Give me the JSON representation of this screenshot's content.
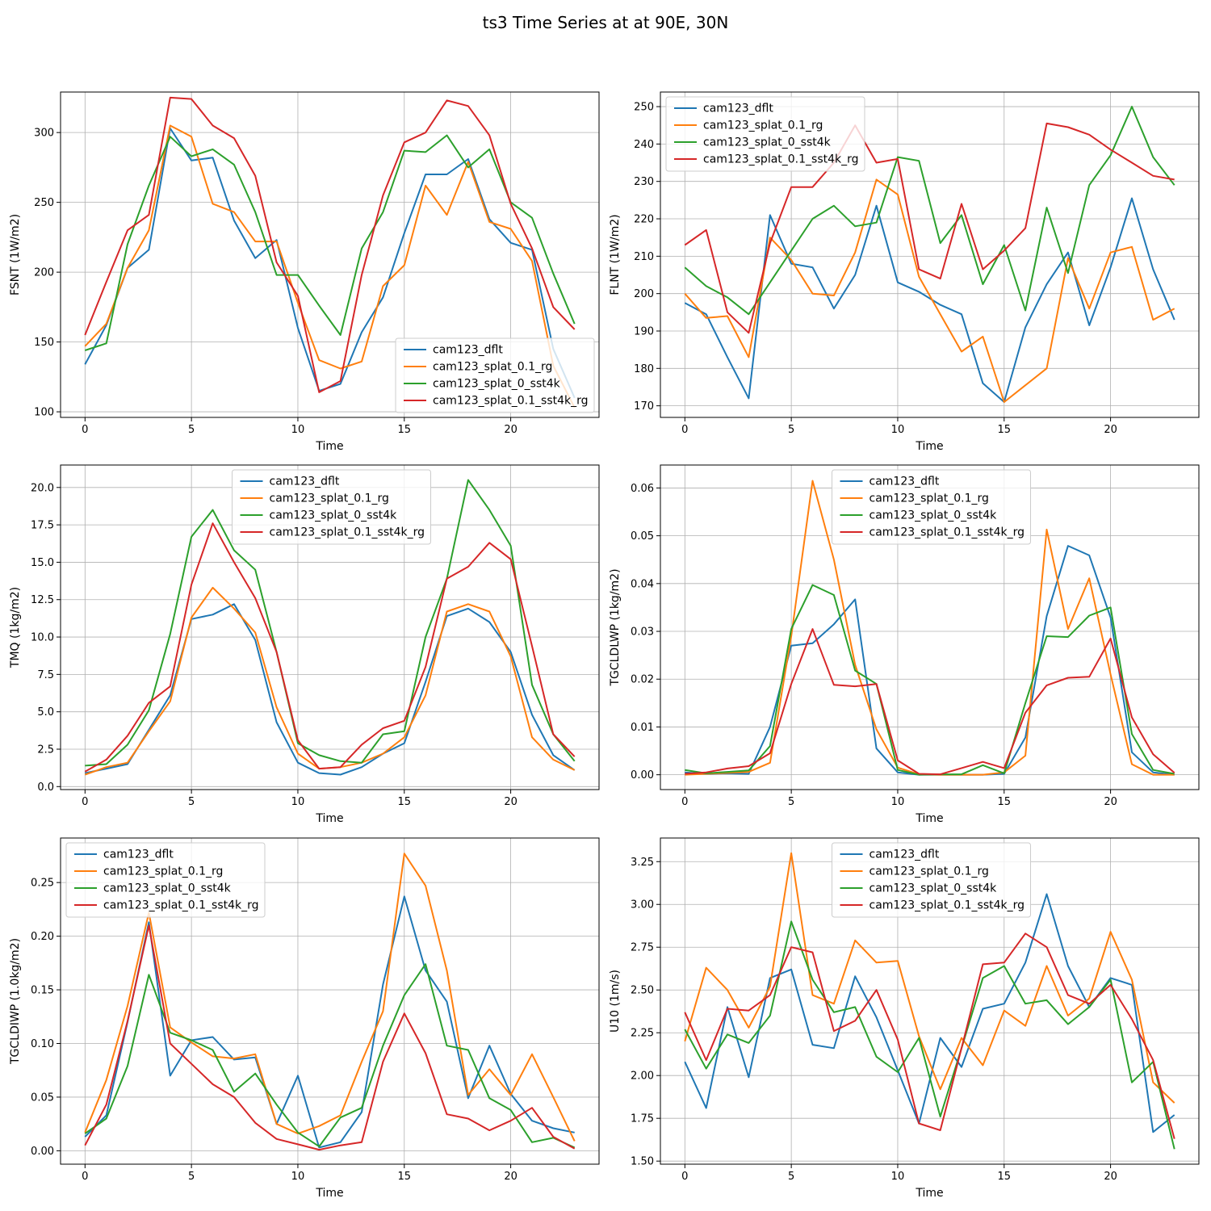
{
  "suptitle": "ts3 Time Series at at 90E, 30N",
  "colors": {
    "cam123_dflt": "#1f77b4",
    "cam123_splat_0.1_rg": "#ff7f0e",
    "cam123_splat_0_sst4k": "#2ca02c",
    "cam123_splat_0.1_sst4k_rg": "#d62728",
    "grid": "#b0b0b0",
    "axis": "#000000"
  },
  "chart_data": [
    {
      "id": "fsnt",
      "type": "line",
      "xlabel": "Time",
      "ylabel": "FSNT (1W/m2)",
      "xlim": [
        -1.15,
        24.15
      ],
      "ylim": [
        96,
        329
      ],
      "xticks": [
        0,
        5,
        10,
        15,
        20
      ],
      "yticks": [
        100,
        150,
        200,
        250,
        300
      ],
      "ytick_labels": [
        "100",
        "150",
        "200",
        "250",
        "300"
      ],
      "legend_loc": "lower-right",
      "x": [
        0,
        1,
        2,
        3,
        4,
        5,
        6,
        7,
        8,
        9,
        10,
        11,
        12,
        13,
        14,
        15,
        16,
        17,
        18,
        19,
        20,
        21,
        22,
        23
      ],
      "series": [
        {
          "name": "cam123_dflt",
          "values": [
            134,
            162,
            203,
            216,
            303,
            280,
            282,
            237,
            210,
            223,
            160,
            115,
            120,
            157,
            182,
            228,
            270,
            270,
            281,
            238,
            221,
            216,
            145,
            110
          ]
        },
        {
          "name": "cam123_splat_0.1_rg",
          "values": [
            147,
            163,
            203,
            230,
            305,
            297,
            249,
            243,
            222,
            222,
            178,
            137,
            131,
            136,
            190,
            205,
            262,
            241,
            279,
            236,
            231,
            208,
            133,
            103
          ]
        },
        {
          "name": "cam123_splat_0_sst4k",
          "values": [
            144,
            149,
            220,
            262,
            297,
            283,
            288,
            277,
            243,
            198,
            198,
            176,
            155,
            217,
            243,
            287,
            286,
            298,
            275,
            288,
            250,
            239,
            199,
            163
          ]
        },
        {
          "name": "cam123_splat_0.1_sst4k_rg",
          "values": [
            155,
            193,
            230,
            241,
            325,
            324,
            305,
            296,
            269,
            207,
            183,
            114,
            122,
            198,
            255,
            293,
            300,
            323,
            319,
            298,
            249,
            217,
            175,
            159
          ]
        }
      ]
    },
    {
      "id": "flnt",
      "type": "line",
      "xlabel": "Time",
      "ylabel": "FLNT (1W/m2)",
      "xlim": [
        -1.15,
        24.15
      ],
      "ylim": [
        166.9,
        253.9
      ],
      "xticks": [
        0,
        5,
        10,
        15,
        20
      ],
      "yticks": [
        170,
        180,
        190,
        200,
        210,
        220,
        230,
        240,
        250
      ],
      "ytick_labels": [
        "170",
        "180",
        "190",
        "200",
        "210",
        "220",
        "230",
        "240",
        "250"
      ],
      "legend_loc": "upper-left",
      "x": [
        0,
        1,
        2,
        3,
        4,
        5,
        6,
        7,
        8,
        9,
        10,
        11,
        12,
        13,
        14,
        15,
        16,
        17,
        18,
        19,
        20,
        21,
        22,
        23
      ],
      "series": [
        {
          "name": "cam123_dflt",
          "values": [
            197.5,
            194.5,
            183,
            172,
            221,
            208,
            207,
            196,
            205,
            223.5,
            203,
            200.5,
            197,
            194.5,
            176,
            171,
            191,
            202.5,
            211,
            191.5,
            207,
            225.5,
            206.5,
            193
          ]
        },
        {
          "name": "cam123_splat_0.1_rg",
          "values": [
            200,
            193.5,
            194,
            183,
            215,
            209,
            200,
            199.5,
            211,
            230.5,
            226.5,
            204.5,
            194.5,
            184.5,
            188.5,
            171,
            175.5,
            180,
            209.5,
            196,
            211,
            212.5,
            193,
            196
          ]
        },
        {
          "name": "cam123_splat_0_sst4k",
          "values": [
            207,
            202,
            199,
            194.5,
            203,
            211.5,
            220,
            223.5,
            218,
            219,
            236.5,
            235.5,
            213.5,
            221,
            202.5,
            213,
            195.5,
            223,
            205.5,
            229,
            237,
            250,
            236.5,
            229
          ]
        },
        {
          "name": "cam123_splat_0.1_sst4k_rg",
          "values": [
            213,
            217,
            195,
            189.5,
            213.5,
            228.5,
            228.5,
            235,
            245,
            235,
            236,
            206.5,
            204,
            224,
            206.5,
            211.5,
            217.5,
            245.5,
            244.5,
            242.5,
            238.5,
            235,
            231.5,
            230.5
          ]
        }
      ]
    },
    {
      "id": "tmq",
      "type": "line",
      "xlabel": "Time",
      "ylabel": "TMQ (1kg/m2)",
      "xlim": [
        -1.15,
        24.15
      ],
      "ylim": [
        -0.2,
        21.5
      ],
      "xticks": [
        0,
        5,
        10,
        15,
        20
      ],
      "yticks": [
        0,
        2.5,
        5,
        7.5,
        10,
        12.5,
        15,
        17.5,
        20
      ],
      "ytick_labels": [
        "0.0",
        "2.5",
        "5.0",
        "7.5",
        "10.0",
        "12.5",
        "15.0",
        "17.5",
        "20.0"
      ],
      "legend_loc": "upper-center",
      "x": [
        0,
        1,
        2,
        3,
        4,
        5,
        6,
        7,
        8,
        9,
        10,
        11,
        12,
        13,
        14,
        15,
        16,
        17,
        18,
        19,
        20,
        21,
        22,
        23
      ],
      "series": [
        {
          "name": "cam123_dflt",
          "values": [
            0.9,
            1.2,
            1.5,
            3.8,
            6.1,
            11.2,
            11.5,
            12.2,
            9.8,
            4.3,
            1.6,
            0.9,
            0.8,
            1.3,
            2.2,
            2.9,
            7.0,
            11.4,
            11.9,
            11.0,
            9.0,
            4.8,
            2.1,
            1.1
          ]
        },
        {
          "name": "cam123_splat_0.1_rg",
          "values": [
            0.8,
            1.3,
            1.6,
            3.7,
            5.7,
            11.3,
            13.3,
            11.9,
            10.3,
            5.3,
            2.2,
            1.2,
            1.3,
            1.6,
            2.2,
            3.3,
            6.1,
            11.7,
            12.2,
            11.7,
            8.7,
            3.3,
            1.8,
            1.1
          ]
        },
        {
          "name": "cam123_splat_0_sst4k",
          "values": [
            1.4,
            1.5,
            2.8,
            5.1,
            10.2,
            16.7,
            18.5,
            15.8,
            14.5,
            9.0,
            2.9,
            2.1,
            1.7,
            1.6,
            3.5,
            3.7,
            10.0,
            13.9,
            20.5,
            18.5,
            16.1,
            6.8,
            3.5,
            1.7
          ]
        },
        {
          "name": "cam123_splat_0.1_sst4k_rg",
          "values": [
            1.0,
            1.8,
            3.4,
            5.6,
            6.7,
            13.5,
            17.6,
            15.0,
            12.6,
            9.0,
            3.1,
            1.2,
            1.3,
            2.8,
            3.9,
            4.4,
            8.0,
            13.9,
            14.7,
            16.3,
            15.2,
            9.4,
            3.5,
            2.0
          ]
        }
      ]
    },
    {
      "id": "tgcldlwp",
      "type": "line",
      "xlabel": "Time",
      "ylabel": "TGCLDLWP (1kg/m2)",
      "xlim": [
        -1.15,
        24.15
      ],
      "ylim": [
        -0.0031,
        0.0648
      ],
      "xticks": [
        0,
        5,
        10,
        15,
        20
      ],
      "yticks": [
        0,
        0.01,
        0.02,
        0.03,
        0.04,
        0.05,
        0.06
      ],
      "ytick_labels": [
        "0.00",
        "0.01",
        "0.02",
        "0.03",
        "0.04",
        "0.05",
        "0.06"
      ],
      "legend_loc": "upper-center",
      "x": [
        0,
        1,
        2,
        3,
        4,
        5,
        6,
        7,
        8,
        9,
        10,
        11,
        12,
        13,
        14,
        15,
        16,
        17,
        18,
        19,
        20,
        21,
        22,
        23
      ],
      "series": [
        {
          "name": "cam123_dflt",
          "values": [
            0.0005,
            0.0002,
            0.0003,
            0.0002,
            0.01,
            0.027,
            0.0275,
            0.0315,
            0.0367,
            0.0055,
            0.0005,
            0.0,
            0.0,
            0.0,
            0.0,
            0.0002,
            0.0078,
            0.0332,
            0.0479,
            0.0459,
            0.0329,
            0.0047,
            0.0005,
            0.0
          ]
        },
        {
          "name": "cam123_splat_0.1_rg",
          "values": [
            0.0,
            0.0002,
            0.0004,
            0.0006,
            0.0025,
            0.029,
            0.0615,
            0.045,
            0.023,
            0.0095,
            0.0015,
            0.0001,
            0.0,
            0.0,
            0.0,
            0.0005,
            0.004,
            0.0513,
            0.0305,
            0.0411,
            0.021,
            0.0022,
            0.0,
            0.0
          ]
        },
        {
          "name": "cam123_splat_0_sst4k",
          "values": [
            0.001,
            0.0003,
            0.0006,
            0.0009,
            0.006,
            0.0305,
            0.0397,
            0.0376,
            0.0218,
            0.019,
            0.001,
            0.0,
            0.0001,
            0.0001,
            0.002,
            0.0003,
            0.015,
            0.029,
            0.0288,
            0.0333,
            0.035,
            0.0085,
            0.001,
            0.0002
          ]
        },
        {
          "name": "cam123_splat_0.1_sst4k_rg",
          "values": [
            0.0002,
            0.0005,
            0.0013,
            0.0018,
            0.0045,
            0.019,
            0.0305,
            0.0188,
            0.0185,
            0.019,
            0.003,
            0.0002,
            0.0001,
            0.0014,
            0.0027,
            0.0014,
            0.013,
            0.0187,
            0.0203,
            0.0205,
            0.0285,
            0.012,
            0.0043,
            0.0004
          ]
        }
      ]
    },
    {
      "id": "tgcldiwp",
      "type": "line",
      "xlabel": "Time",
      "ylabel": "TGCLDIWP (1.0kg/m2)",
      "xlim": [
        -1.15,
        24.15
      ],
      "ylim": [
        -0.0125,
        0.2915
      ],
      "xticks": [
        0,
        5,
        10,
        15,
        20
      ],
      "yticks": [
        0,
        0.05,
        0.1,
        0.15,
        0.2,
        0.25
      ],
      "ytick_labels": [
        "0.00",
        "0.05",
        "0.10",
        "0.15",
        "0.20",
        "0.25"
      ],
      "legend_loc": "upper-left",
      "x": [
        0,
        1,
        2,
        3,
        4,
        5,
        6,
        7,
        8,
        9,
        10,
        11,
        12,
        13,
        14,
        15,
        16,
        17,
        18,
        19,
        20,
        21,
        22,
        23
      ],
      "series": [
        {
          "name": "cam123_dflt",
          "values": [
            0.013,
            0.033,
            0.12,
            0.213,
            0.07,
            0.103,
            0.106,
            0.085,
            0.087,
            0.025,
            0.07,
            0.003,
            0.008,
            0.036,
            0.155,
            0.237,
            0.168,
            0.139,
            0.049,
            0.098,
            0.053,
            0.028,
            0.021,
            0.017
          ]
        },
        {
          "name": "cam123_splat_0.1_rg",
          "values": [
            0.017,
            0.066,
            0.135,
            0.222,
            0.115,
            0.101,
            0.088,
            0.086,
            0.09,
            0.025,
            0.016,
            0.023,
            0.033,
            0.083,
            0.13,
            0.277,
            0.247,
            0.168,
            0.052,
            0.076,
            0.052,
            0.09,
            0.05,
            0.009
          ]
        },
        {
          "name": "cam123_splat_0_sst4k",
          "values": [
            0.016,
            0.03,
            0.079,
            0.164,
            0.11,
            0.103,
            0.094,
            0.055,
            0.072,
            0.043,
            0.017,
            0.004,
            0.031,
            0.04,
            0.098,
            0.145,
            0.174,
            0.098,
            0.094,
            0.049,
            0.038,
            0.008,
            0.012,
            0.003
          ]
        },
        {
          "name": "cam123_splat_0.1_sst4k_rg",
          "values": [
            0.005,
            0.043,
            0.121,
            0.21,
            0.1,
            0.081,
            0.062,
            0.05,
            0.026,
            0.011,
            0.006,
            0.001,
            0.005,
            0.008,
            0.083,
            0.128,
            0.091,
            0.034,
            0.03,
            0.019,
            0.028,
            0.04,
            0.013,
            0.002
          ]
        }
      ]
    },
    {
      "id": "u10",
      "type": "line",
      "xlabel": "Time",
      "ylabel": "U10 (1m/s)",
      "xlim": [
        -1.15,
        24.15
      ],
      "ylim": [
        1.482,
        3.388
      ],
      "xticks": [
        0,
        5,
        10,
        15,
        20
      ],
      "yticks": [
        1.5,
        1.75,
        2.0,
        2.25,
        2.5,
        2.75,
        3.0,
        3.25
      ],
      "ytick_labels": [
        "1.50",
        "1.75",
        "2.00",
        "2.25",
        "2.50",
        "2.75",
        "3.00",
        "3.25"
      ],
      "legend_loc": "upper-center",
      "x": [
        0,
        1,
        2,
        3,
        4,
        5,
        6,
        7,
        8,
        9,
        10,
        11,
        12,
        13,
        14,
        15,
        16,
        17,
        18,
        19,
        20,
        21,
        22,
        23
      ],
      "series": [
        {
          "name": "cam123_dflt",
          "values": [
            2.08,
            1.81,
            2.4,
            1.99,
            2.57,
            2.62,
            2.18,
            2.16,
            2.58,
            2.34,
            2.03,
            1.72,
            2.22,
            2.05,
            2.39,
            2.42,
            2.66,
            3.06,
            2.64,
            2.4,
            2.57,
            2.53,
            1.67,
            1.77
          ]
        },
        {
          "name": "cam123_splat_0.1_rg",
          "values": [
            2.2,
            2.63,
            2.5,
            2.28,
            2.52,
            3.3,
            2.47,
            2.42,
            2.79,
            2.66,
            2.67,
            2.23,
            1.92,
            2.22,
            2.06,
            2.38,
            2.29,
            2.64,
            2.35,
            2.45,
            2.84,
            2.56,
            1.96,
            1.84
          ]
        },
        {
          "name": "cam123_splat_0_sst4k",
          "values": [
            2.27,
            2.04,
            2.24,
            2.19,
            2.35,
            2.9,
            2.56,
            2.37,
            2.4,
            2.11,
            2.02,
            2.22,
            1.76,
            2.16,
            2.57,
            2.64,
            2.42,
            2.44,
            2.3,
            2.4,
            2.56,
            1.96,
            2.08,
            1.57
          ]
        },
        {
          "name": "cam123_splat_0.1_sst4k_rg",
          "values": [
            2.37,
            2.09,
            2.39,
            2.38,
            2.47,
            2.75,
            2.72,
            2.26,
            2.32,
            2.5,
            2.21,
            1.72,
            1.68,
            2.16,
            2.65,
            2.66,
            2.83,
            2.75,
            2.47,
            2.42,
            2.53,
            2.33,
            2.09,
            1.63
          ]
        }
      ]
    }
  ]
}
